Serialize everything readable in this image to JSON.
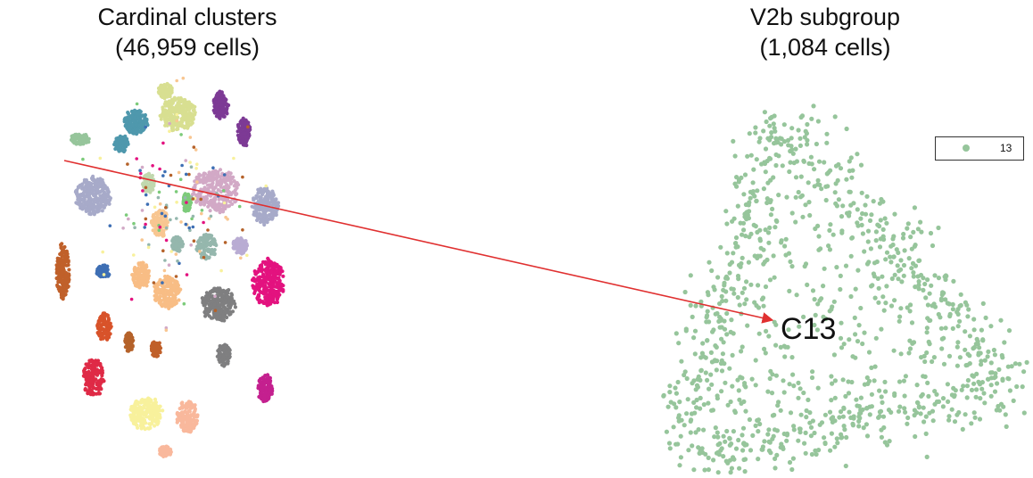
{
  "left_panel": {
    "title_line1": "Cardinal clusters",
    "title_line2": "(46,959 cells)"
  },
  "right_panel": {
    "title_line1": "V2b subgroup",
    "title_line2": "(1,084 cells)",
    "callout_label": "C13",
    "legend_label": "13"
  },
  "colors": {
    "highlight_cluster": "#96c59b",
    "arrow": "#e03030"
  },
  "chart_data": [
    {
      "type": "scatter",
      "title": "Cardinal clusters (46,959 cells)",
      "total_cells": 46959,
      "xlabel": "",
      "ylabel": "",
      "grid": false,
      "axes_visible": false,
      "clusters": [
        {
          "color": "#96c59b",
          "cx": -1.7,
          "cy": 0.66,
          "rx": 0.17,
          "ry": 0.05,
          "weight": 0.18
        },
        {
          "color": "#4f98ad",
          "cx": -0.82,
          "cy": 0.81,
          "rx": 0.2,
          "ry": 0.11,
          "weight": 0.55
        },
        {
          "color": "#4f98ad",
          "cx": -1.05,
          "cy": 0.62,
          "rx": 0.12,
          "ry": 0.08,
          "weight": 0.2
        },
        {
          "color": "#d8df91",
          "cx": -0.15,
          "cy": 0.88,
          "rx": 0.3,
          "ry": 0.15,
          "weight": 0.9
        },
        {
          "color": "#d8df91",
          "cx": -0.35,
          "cy": 1.08,
          "rx": 0.12,
          "ry": 0.07,
          "weight": 0.15
        },
        {
          "color": "#7d3a95",
          "cx": 0.53,
          "cy": 0.95,
          "rx": 0.13,
          "ry": 0.13,
          "weight": 0.35
        },
        {
          "color": "#7d3a95",
          "cx": 0.9,
          "cy": 0.72,
          "rx": 0.11,
          "ry": 0.13,
          "weight": 0.3
        },
        {
          "color": "#a7aac9",
          "cx": -1.5,
          "cy": 0.17,
          "rx": 0.3,
          "ry": 0.17,
          "weight": 0.85
        },
        {
          "color": "#d2a9c6",
          "cx": 0.45,
          "cy": 0.22,
          "rx": 0.4,
          "ry": 0.2,
          "weight": 1.0
        },
        {
          "color": "#a7aac9",
          "cx": 1.24,
          "cy": 0.08,
          "rx": 0.22,
          "ry": 0.17,
          "weight": 0.55
        },
        {
          "color": "#b9acd3",
          "cx": 0.84,
          "cy": -0.26,
          "rx": 0.12,
          "ry": 0.08,
          "weight": 0.15
        },
        {
          "color": "#7ccb7a",
          "cx": -0.01,
          "cy": 0.11,
          "rx": 0.07,
          "ry": 0.09,
          "weight": 0.18
        },
        {
          "color": "#c1d8ae",
          "cx": -0.62,
          "cy": 0.28,
          "rx": 0.1,
          "ry": 0.09,
          "weight": 0.18
        },
        {
          "color": "#f8c691",
          "cx": -0.43,
          "cy": -0.07,
          "rx": 0.15,
          "ry": 0.12,
          "weight": 0.25
        },
        {
          "color": "#95b7ad",
          "cx": 0.31,
          "cy": -0.27,
          "rx": 0.17,
          "ry": 0.12,
          "weight": 0.3
        },
        {
          "color": "#95b7ad",
          "cx": -0.16,
          "cy": -0.25,
          "rx": 0.1,
          "ry": 0.07,
          "weight": 0.12
        },
        {
          "color": "#c0602a",
          "cx": -1.98,
          "cy": -0.49,
          "rx": 0.11,
          "ry": 0.25,
          "weight": 0.45
        },
        {
          "color": "#3e6fb4",
          "cx": -1.34,
          "cy": -0.49,
          "rx": 0.11,
          "ry": 0.06,
          "weight": 0.18
        },
        {
          "color": "#f8bd85",
          "cx": -0.74,
          "cy": -0.52,
          "rx": 0.15,
          "ry": 0.12,
          "weight": 0.3
        },
        {
          "color": "#f8bd85",
          "cx": -0.32,
          "cy": -0.67,
          "rx": 0.23,
          "ry": 0.15,
          "weight": 0.55
        },
        {
          "color": "#7f7f80",
          "cx": 0.49,
          "cy": -0.77,
          "rx": 0.28,
          "ry": 0.16,
          "weight": 0.7
        },
        {
          "color": "#7f7f80",
          "cx": 0.58,
          "cy": -1.21,
          "rx": 0.11,
          "ry": 0.1,
          "weight": 0.18
        },
        {
          "color": "#e3127f",
          "cx": 1.29,
          "cy": -0.58,
          "rx": 0.27,
          "ry": 0.22,
          "weight": 0.85
        },
        {
          "color": "#d8532a",
          "cx": -1.32,
          "cy": -0.97,
          "rx": 0.12,
          "ry": 0.13,
          "weight": 0.25
        },
        {
          "color": "#b5622a",
          "cx": -0.93,
          "cy": -1.1,
          "rx": 0.07,
          "ry": 0.09,
          "weight": 0.1
        },
        {
          "color": "#c0602a",
          "cx": -0.5,
          "cy": -1.16,
          "rx": 0.09,
          "ry": 0.07,
          "weight": 0.1
        },
        {
          "color": "#df2a46",
          "cx": -1.49,
          "cy": -1.41,
          "rx": 0.18,
          "ry": 0.17,
          "weight": 0.45
        },
        {
          "color": "#c4208f",
          "cx": 1.24,
          "cy": -1.5,
          "rx": 0.13,
          "ry": 0.13,
          "weight": 0.3
        },
        {
          "color": "#f8f19c",
          "cx": -0.66,
          "cy": -1.72,
          "rx": 0.28,
          "ry": 0.15,
          "weight": 0.65
        },
        {
          "color": "#f9b89c",
          "cx": 0.0,
          "cy": -1.75,
          "rx": 0.18,
          "ry": 0.15,
          "weight": 0.4
        },
        {
          "color": "#f9b89c",
          "cx": -0.35,
          "cy": -2.05,
          "rx": 0.1,
          "ry": 0.05,
          "weight": 0.08
        }
      ],
      "sparse_colors": [
        "#e3127f",
        "#3e6fb4",
        "#f8c691",
        "#d2a9c6",
        "#95b7ad",
        "#7ccb7a",
        "#b5622a",
        "#f8f19c"
      ],
      "sparse_center": [
        -0.2,
        0.05
      ],
      "sparse_spread": [
        0.55,
        0.45
      ]
    },
    {
      "type": "scatter",
      "title": "V2b subgroup (1,084 cells)",
      "total_cells": 1084,
      "xlabel": "",
      "ylabel": "",
      "grid": false,
      "axes_visible": false,
      "legend": {
        "placement": "top-right",
        "entries": [
          "13"
        ]
      },
      "series": [
        {
          "name": "13",
          "color": "#96c59b",
          "count": 1084
        }
      ],
      "annotation": {
        "text": "C13",
        "x": -0.18,
        "y": -0.02
      },
      "xlim": [
        -1.25,
        1.25
      ],
      "ylim": [
        -1.05,
        1.05
      ]
    }
  ]
}
